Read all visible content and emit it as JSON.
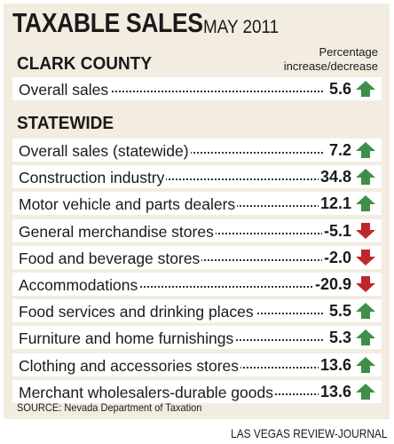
{
  "title": "TAXABLE SALES",
  "subtitle": "MAY 2011",
  "percentage_note_line1": "Percentage",
  "percentage_note_line2": "increase/decrease",
  "source": "SOURCE: Nevada Department of Taxation",
  "credit": "LAS VEGAS REVIEW-JOURNAL",
  "colors": {
    "increase": "#3f8f4a",
    "decrease": "#c0272d",
    "panel": "#f3ece1"
  },
  "chart_data": {
    "type": "table",
    "groups": [
      {
        "name": "CLARK COUNTY",
        "rows": [
          {
            "label": "Overall sales",
            "value": "5.6",
            "direction": "up"
          }
        ]
      },
      {
        "name": "STATEWIDE",
        "rows": [
          {
            "label": "Overall sales (statewide)",
            "value": "7.2",
            "direction": "up"
          },
          {
            "label": "Construction industry",
            "value": "34.8",
            "direction": "up"
          },
          {
            "label": "Motor vehicle and parts dealers",
            "value": "12.1",
            "direction": "up"
          },
          {
            "label": "General merchandise stores",
            "value": "-5.1",
            "direction": "down"
          },
          {
            "label": "Food and beverage stores",
            "value": "-2.0",
            "direction": "down"
          },
          {
            "label": "Accommodations",
            "value": "-20.9",
            "direction": "down"
          },
          {
            "label": "Food services and drinking places",
            "value": "5.5",
            "direction": "up"
          },
          {
            "label": "Furniture and home furnishings",
            "value": "5.3",
            "direction": "up"
          },
          {
            "label": "Clothing and accessories stores",
            "value": "13.6",
            "direction": "up"
          },
          {
            "label": "Merchant wholesalers-durable goods",
            "value": "13.6",
            "direction": "up"
          }
        ]
      }
    ]
  }
}
